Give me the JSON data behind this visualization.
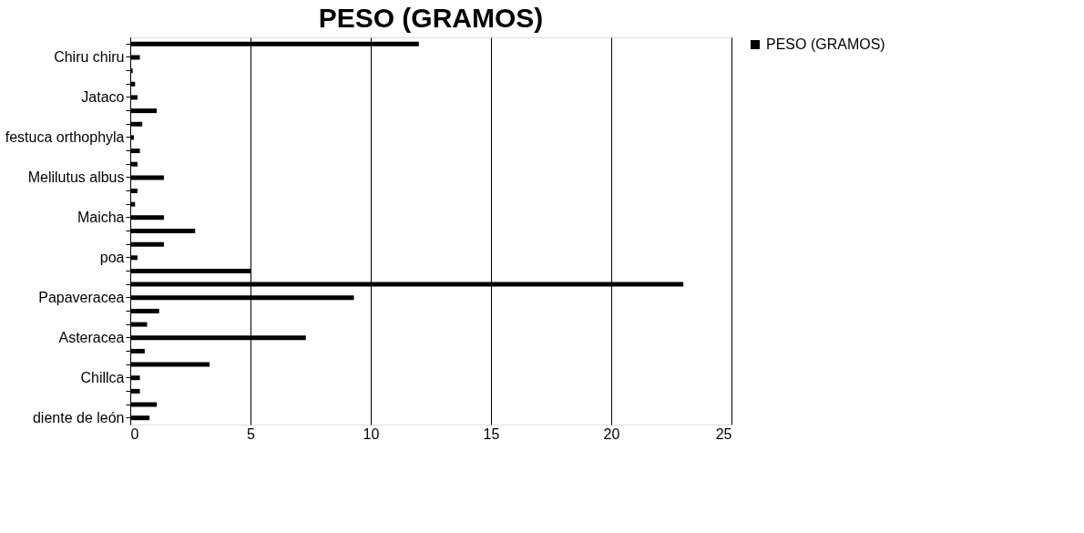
{
  "chart_data": {
    "type": "bar",
    "orientation": "horizontal",
    "title": "PESO (GRAMOS)",
    "categories": [
      null,
      "Chiru chiru",
      null,
      null,
      "Jataco",
      null,
      null,
      "festuca orthophyla",
      null,
      null,
      "Melilutus albus",
      null,
      null,
      "Maicha",
      null,
      null,
      "poa",
      null,
      null,
      "Papaveracea",
      null,
      null,
      "Asteracea",
      null,
      null,
      "Chillca",
      null,
      null,
      "diente de león"
    ],
    "series": [
      {
        "name": "PESO (GRAMOS)",
        "color": "#000000",
        "values": [
          12.0,
          0.4,
          0.1,
          0.2,
          0.3,
          1.1,
          0.5,
          0.15,
          0.4,
          0.3,
          1.4,
          0.3,
          0.2,
          1.4,
          2.7,
          1.4,
          0.3,
          5.0,
          23.0,
          9.3,
          1.2,
          0.7,
          7.3,
          0.6,
          3.3,
          0.4,
          0.4,
          1.1,
          0.8
        ]
      }
    ],
    "xlim": [
      0,
      25
    ],
    "xticks": [
      0,
      5,
      10,
      15,
      20,
      25
    ],
    "grid": "x",
    "legend": "right"
  }
}
